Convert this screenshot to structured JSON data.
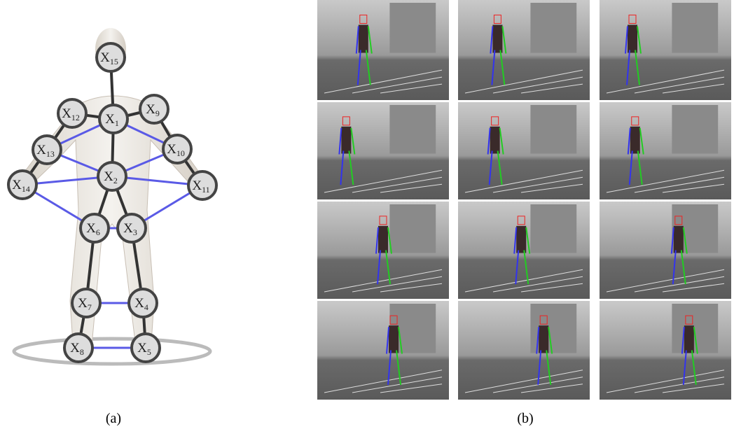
{
  "nodes": [
    {
      "base": "X",
      "sub": "15"
    },
    {
      "base": "X",
      "sub": "1"
    },
    {
      "base": "X",
      "sub": "12"
    },
    {
      "base": "X",
      "sub": "9"
    },
    {
      "base": "X",
      "sub": "13"
    },
    {
      "base": "X",
      "sub": "10"
    },
    {
      "base": "X",
      "sub": "2"
    },
    {
      "base": "X",
      "sub": "14"
    },
    {
      "base": "X",
      "sub": "11"
    },
    {
      "base": "X",
      "sub": "6"
    },
    {
      "base": "X",
      "sub": "3"
    },
    {
      "base": "X",
      "sub": "7"
    },
    {
      "base": "X",
      "sub": "4"
    },
    {
      "base": "X",
      "sub": "8"
    },
    {
      "base": "X",
      "sub": "5"
    }
  ],
  "captions": {
    "a": "(a)",
    "b": "(b)"
  }
}
